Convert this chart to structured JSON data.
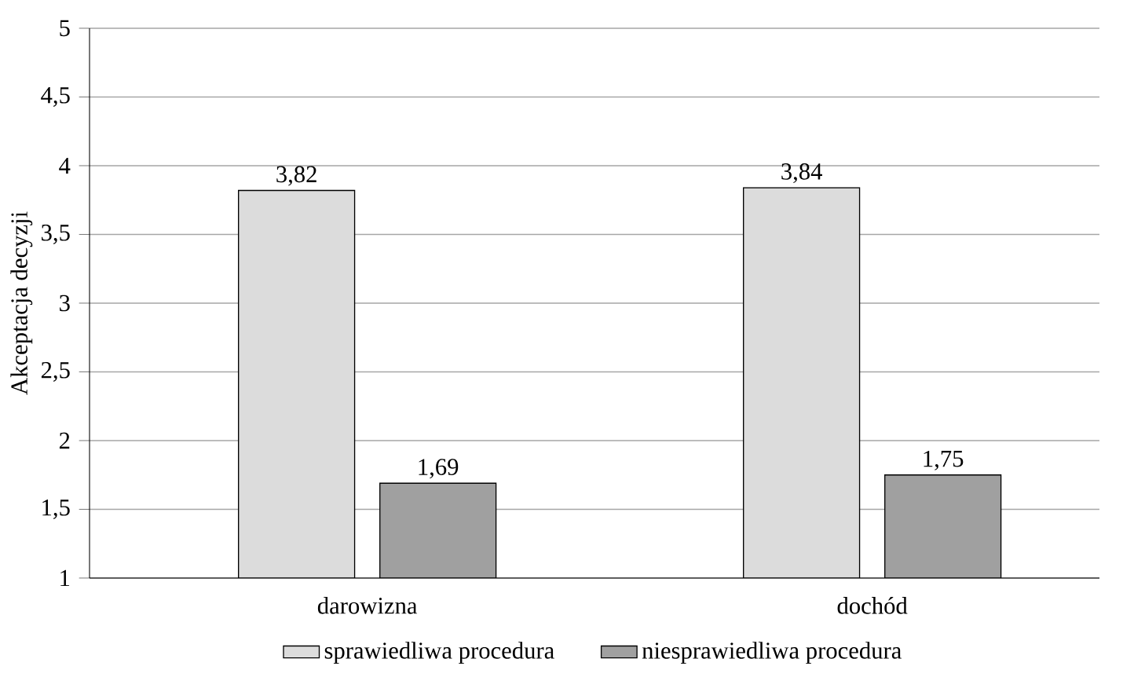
{
  "chart_data": {
    "type": "bar",
    "ylabel": "Akceptacja decyzji",
    "categories": [
      "darowizna",
      "dochód"
    ],
    "series": [
      {
        "name": "sprawiedliwa procedura",
        "color": "#dcdcdc",
        "values": [
          3.82,
          3.84
        ],
        "value_labels": [
          "3,82",
          "3,84"
        ]
      },
      {
        "name": "niesprawiedliwa procedura",
        "color": "#a0a0a0",
        "values": [
          1.69,
          1.75
        ],
        "value_labels": [
          "1,69",
          "1,75"
        ]
      }
    ],
    "ylim": [
      1,
      5
    ],
    "yticks": [
      1,
      {
        "value": 1.5,
        "label": "1,5"
      },
      2,
      {
        "value": 2.5,
        "label": "2,5"
      },
      3,
      {
        "value": 3.5,
        "label": "3,5"
      },
      4,
      {
        "value": 4.5,
        "label": "4,5"
      },
      5
    ],
    "grid": "y",
    "legend": "bottom"
  }
}
